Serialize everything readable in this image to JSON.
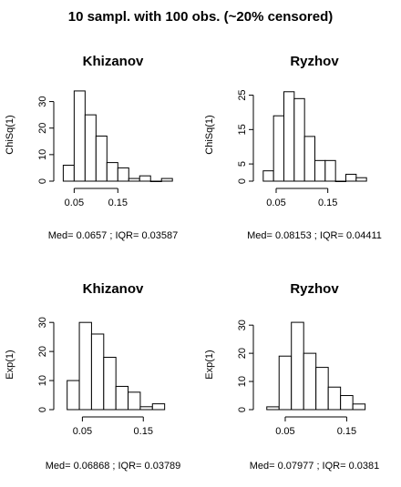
{
  "figure": {
    "title": "10 sampl. with 100 obs. (~20% censored)"
  },
  "chart_data": [
    {
      "type": "bar",
      "title": "Khizanov",
      "ylabel": "ChiSq(1)",
      "caption": "Med= 0.0657 ; IQR= 0.03587",
      "bin_edges": [
        0.025,
        0.05,
        0.075,
        0.1,
        0.125,
        0.15,
        0.175,
        0.2,
        0.225,
        0.25
      ],
      "values": [
        6,
        34,
        25,
        17,
        7,
        5,
        1,
        2,
        0,
        1
      ],
      "bin_width": 0.025,
      "bin_start": 0.025,
      "xlim": [
        0.02,
        0.26
      ],
      "x_ticks": [
        0.05,
        0.15
      ],
      "x_tick_labels": [
        "0.05",
        "0.15"
      ],
      "ylim": [
        0,
        35
      ],
      "y_ticks": [
        0,
        10,
        20,
        30
      ],
      "y_tick_labels": [
        "0",
        "10",
        "20",
        "30"
      ]
    },
    {
      "type": "bar",
      "title": "Ryzhov",
      "ylabel": "ChiSq(1)",
      "caption": "Med= 0.08153 ; IQR= 0.04411",
      "bin_start": 0.025,
      "bin_width": 0.02,
      "values": [
        3,
        19,
        26,
        24,
        13,
        6,
        6,
        0,
        2,
        1
      ],
      "xlim": [
        0.02,
        0.23
      ],
      "x_ticks": [
        0.05,
        0.15
      ],
      "x_tick_labels": [
        "0.05",
        "0.15"
      ],
      "ylim": [
        0,
        27
      ],
      "y_ticks": [
        0,
        5,
        15,
        25
      ],
      "y_tick_labels": [
        "0",
        "5",
        "15",
        "25"
      ]
    },
    {
      "type": "bar",
      "title": "Khizanov",
      "ylabel": "Exp(1)",
      "caption": "Med= 0.06868 ; IQR= 0.03789",
      "bin_start": 0.025,
      "bin_width": 0.02,
      "values": [
        10,
        30,
        26,
        18,
        8,
        6,
        1,
        2
      ],
      "xlim": [
        0.015,
        0.19
      ],
      "x_ticks": [
        0.05,
        0.15
      ],
      "x_tick_labels": [
        "0.05",
        "0.15"
      ],
      "ylim": [
        0,
        31
      ],
      "y_ticks": [
        0,
        10,
        20,
        30
      ],
      "y_tick_labels": [
        "0",
        "10",
        "20",
        "30"
      ]
    },
    {
      "type": "bar",
      "title": "Ryzhov",
      "ylabel": "Exp(1)",
      "caption": "Med= 0.07977 ; IQR= 0.0381",
      "bin_start": 0.02,
      "bin_width": 0.02,
      "values": [
        1,
        19,
        31,
        20,
        15,
        8,
        5,
        2
      ],
      "xlim": [
        0.01,
        0.185
      ],
      "x_ticks": [
        0.05,
        0.15
      ],
      "x_tick_labels": [
        "0.05",
        "0.15"
      ],
      "ylim": [
        0,
        32
      ],
      "y_ticks": [
        0,
        10,
        20,
        30
      ],
      "y_tick_labels": [
        "0",
        "10",
        "20",
        "30"
      ]
    }
  ]
}
